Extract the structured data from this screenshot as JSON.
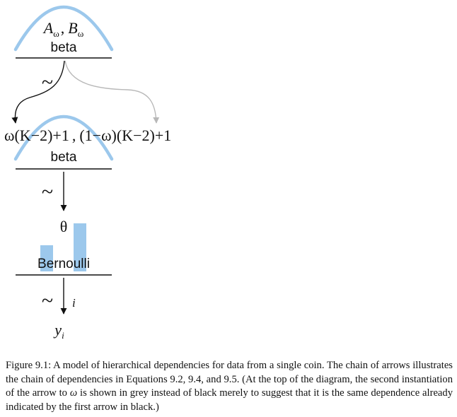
{
  "top_distribution": {
    "params": "Aω , Bω",
    "param1_base": "A",
    "param_sep": ",",
    "param2_base": "B",
    "subscript": "ω",
    "name": "beta"
  },
  "tilde": "~",
  "middle_distribution": {
    "params": "ω(K−2)+1 , (1−ω)(K−2)+1",
    "param_left": "ω(K−2)+1",
    "param_sep": ",",
    "param_right": "(1−ω)(K−2)+1",
    "name": "beta"
  },
  "theta": "θ",
  "bernoulli": {
    "name": "Bernoulli",
    "bar_heights": [
      0.55,
      1.0
    ]
  },
  "index_label": "i",
  "output": {
    "base": "y",
    "subscript": "i"
  },
  "caption": {
    "figure_label": "Figure 9.1:",
    "text_before_omega": "A model of hierarchical dependencies for data from a single coin. The chain of arrows illustrates the chain of dependencies in Equations 9.2, 9.4, and 9.5. (At the top of the diagram, the second instantiation of the arrow to",
    "omega": "ω",
    "text_after_omega": "is shown in grey instead of black merely to suggest that it is the same dependence already indicated by the first arrow in black.)"
  },
  "colors": {
    "curve": "#9cc8ec",
    "bar": "#9cc8ec",
    "black_arrow": "#111111",
    "grey_arrow": "#b8b8b8"
  }
}
